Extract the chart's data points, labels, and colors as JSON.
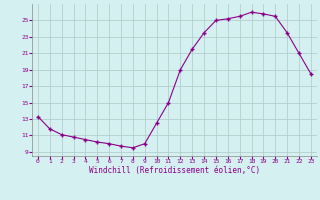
{
  "x": [
    0,
    1,
    2,
    3,
    4,
    5,
    6,
    7,
    8,
    9,
    10,
    11,
    12,
    13,
    14,
    15,
    16,
    17,
    18,
    19,
    20,
    21,
    22,
    23
  ],
  "y": [
    13.3,
    11.8,
    11.1,
    10.8,
    10.5,
    10.2,
    10.0,
    9.7,
    9.5,
    10.0,
    12.5,
    15.0,
    19.0,
    21.5,
    23.5,
    25.0,
    25.2,
    25.5,
    26.0,
    25.8,
    25.5,
    23.5,
    21.0,
    18.5
  ],
  "line_color": "#8B008B",
  "marker_color": "#8B008B",
  "bg_color": "#d4f0f0",
  "grid_color": "#b0c8c8",
  "xlabel": "Windchill (Refroidissement éolien,°C)",
  "yticks": [
    9,
    11,
    13,
    15,
    17,
    19,
    21,
    23,
    25
  ],
  "xticks": [
    0,
    1,
    2,
    3,
    4,
    5,
    6,
    7,
    8,
    9,
    10,
    11,
    12,
    13,
    14,
    15,
    16,
    17,
    18,
    19,
    20,
    21,
    22,
    23
  ],
  "ylim": [
    8.5,
    27.0
  ],
  "xlim": [
    -0.5,
    23.5
  ]
}
